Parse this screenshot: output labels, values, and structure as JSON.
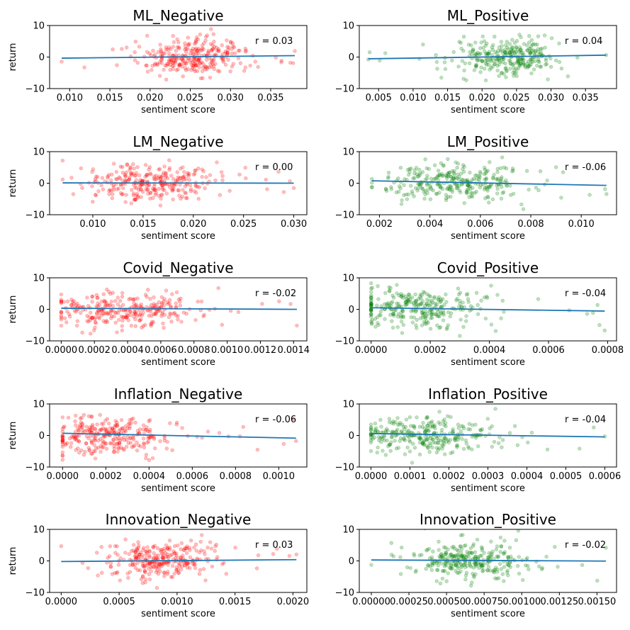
{
  "figure": {
    "background": "#ffffff"
  },
  "style": {
    "negative_color": "#ff0000",
    "positive_color": "#008000",
    "regression_color": "#1f77b4",
    "point_alpha": 0.25
  },
  "chart_data": [
    {
      "type": "scatter",
      "title": "ML_Negative",
      "xlabel": "sentiment score",
      "ylabel": "return",
      "xlim": [
        0.0075,
        0.0395
      ],
      "ylim": [
        -10,
        10
      ],
      "xticks": [
        0.01,
        0.015,
        0.02,
        0.025,
        0.03,
        0.035
      ],
      "xtick_labels": [
        "0.010",
        "0.015",
        "0.020",
        "0.025",
        "0.030",
        "0.035"
      ],
      "yticks": [
        -10,
        0,
        10
      ],
      "ytick_labels": [
        "−10",
        "0",
        "10"
      ],
      "r_label": "r = 0.03",
      "color": "red",
      "x_range": [
        0.009,
        0.038
      ],
      "x_center": 0.0255,
      "x_spread": 0.0032,
      "y_spread": 2.9,
      "fit": {
        "x": [
          0.009,
          0.038
        ],
        "y": [
          -0.35,
          0.45
        ]
      },
      "n_points": 300,
      "seed": 11
    },
    {
      "type": "scatter",
      "title": "ML_Positive",
      "xlabel": "sentiment score",
      "ylabel": "",
      "xlim": [
        0.0022,
        0.0395
      ],
      "ylim": [
        -10,
        10
      ],
      "xticks": [
        0.005,
        0.01,
        0.015,
        0.02,
        0.025,
        0.03,
        0.035
      ],
      "xtick_labels": [
        "0.005",
        "0.010",
        "0.015",
        "0.020",
        "0.025",
        "0.030",
        "0.035"
      ],
      "yticks": [
        -10,
        0,
        10
      ],
      "ytick_labels": [
        "−10",
        "0",
        "10"
      ],
      "r_label": "r = 0.04",
      "color": "green",
      "x_range": [
        0.0035,
        0.038
      ],
      "x_center": 0.0235,
      "x_spread": 0.0035,
      "y_spread": 2.9,
      "fit": {
        "x": [
          0.0035,
          0.038
        ],
        "y": [
          -0.55,
          0.6
        ]
      },
      "n_points": 300,
      "seed": 23
    },
    {
      "type": "scatter",
      "title": "LM_Negative",
      "xlabel": "sentiment score",
      "ylabel": "return",
      "xlim": [
        0.0057,
        0.0313
      ],
      "ylim": [
        -10,
        10
      ],
      "xticks": [
        0.01,
        0.015,
        0.02,
        0.025,
        0.03
      ],
      "xtick_labels": [
        "0.010",
        "0.015",
        "0.020",
        "0.025",
        "0.030"
      ],
      "yticks": [
        -10,
        0,
        10
      ],
      "ytick_labels": [
        "−10",
        "0",
        "10"
      ],
      "r_label": "r = 0.00",
      "color": "red",
      "x_range": [
        0.007,
        0.03
      ],
      "x_center": 0.0155,
      "x_spread": 0.0032,
      "y_spread": 2.9,
      "fit": {
        "x": [
          0.007,
          0.03
        ],
        "y": [
          0.1,
          0.0
        ]
      },
      "n_points": 300,
      "seed": 37
    },
    {
      "type": "scatter",
      "title": "LM_Positive",
      "xlabel": "sentiment score",
      "ylabel": "",
      "xlim": [
        0.0012,
        0.0114
      ],
      "ylim": [
        -10,
        10
      ],
      "xticks": [
        0.002,
        0.004,
        0.006,
        0.008,
        0.01
      ],
      "xtick_labels": [
        "0.002",
        "0.004",
        "0.006",
        "0.008",
        "0.010"
      ],
      "yticks": [
        -10,
        0,
        10
      ],
      "ytick_labels": [
        "−10",
        "0",
        "10"
      ],
      "r_label": "r = -0.06",
      "color": "green",
      "x_range": [
        0.0017,
        0.011
      ],
      "x_center": 0.0048,
      "x_spread": 0.0014,
      "y_spread": 2.9,
      "fit": {
        "x": [
          0.0017,
          0.011
        ],
        "y": [
          0.75,
          -0.7
        ]
      },
      "n_points": 300,
      "seed": 41
    },
    {
      "type": "scatter",
      "title": "Covid_Negative",
      "xlabel": "sentiment score",
      "ylabel": "return",
      "xlim": [
        -7e-05,
        0.00148
      ],
      "ylim": [
        -10,
        10
      ],
      "xticks": [
        0.0,
        0.0002,
        0.0004,
        0.0006,
        0.0008,
        0.001,
        0.0012,
        0.0014
      ],
      "xtick_labels": [
        "0.0000",
        "0.0002",
        "0.0004",
        "0.0006",
        "0.0008",
        "0.0010",
        "0.0012",
        "0.0014"
      ],
      "yticks": [
        -10,
        0,
        10
      ],
      "ytick_labels": [
        "−10",
        "0",
        "10"
      ],
      "r_label": "r = -0.02",
      "color": "red",
      "x_range": [
        0.0,
        0.00142
      ],
      "x_center": 0.00035,
      "x_spread": 0.00025,
      "y_spread": 2.9,
      "fit": {
        "x": [
          0.0,
          0.00142
        ],
        "y": [
          0.35,
          0.0
        ]
      },
      "n_points": 300,
      "seed": 53
    },
    {
      "type": "scatter",
      "title": "Covid_Positive",
      "xlabel": "sentiment score",
      "ylabel": "",
      "xlim": [
        -4e-05,
        0.00083
      ],
      "ylim": [
        -10,
        10
      ],
      "xticks": [
        0.0,
        0.0002,
        0.0004,
        0.0006,
        0.0008
      ],
      "xtick_labels": [
        "0.0000",
        "0.0002",
        "0.0004",
        "0.0006",
        "0.0008"
      ],
      "yticks": [
        -10,
        0,
        10
      ],
      "ytick_labels": [
        "−10",
        "0",
        "10"
      ],
      "r_label": "r = -0.04",
      "color": "green",
      "x_range": [
        0.0,
        0.00079
      ],
      "x_center": 0.00015,
      "x_spread": 0.00011,
      "y_spread": 2.9,
      "fit": {
        "x": [
          0.0,
          0.00079
        ],
        "y": [
          0.5,
          -0.55
        ]
      },
      "n_points": 300,
      "seed": 67
    },
    {
      "type": "scatter",
      "title": "Inflation_Negative",
      "xlabel": "sentiment score",
      "ylabel": "return",
      "xlim": [
        -6e-05,
        0.00113
      ],
      "ylim": [
        -10,
        10
      ],
      "xticks": [
        0.0,
        0.0002,
        0.0004,
        0.0006,
        0.0008,
        0.001
      ],
      "xtick_labels": [
        "0.0000",
        "0.0002",
        "0.0004",
        "0.0006",
        "0.0008",
        "0.0010"
      ],
      "yticks": [
        -10,
        0,
        10
      ],
      "ytick_labels": [
        "−10",
        "0",
        "10"
      ],
      "r_label": "r = -0.06",
      "color": "red",
      "x_range": [
        0.0,
        0.00108
      ],
      "x_center": 0.0002,
      "x_spread": 0.00015,
      "y_spread": 2.9,
      "fit": {
        "x": [
          0.0,
          0.00108
        ],
        "y": [
          0.7,
          -0.85
        ]
      },
      "n_points": 300,
      "seed": 71
    },
    {
      "type": "scatter",
      "title": "Inflation_Positive",
      "xlabel": "sentiment score",
      "ylabel": "",
      "xlim": [
        -3e-05,
        0.00063
      ],
      "ylim": [
        -10,
        10
      ],
      "xticks": [
        0.0,
        0.0001,
        0.0002,
        0.0003,
        0.0004,
        0.0005,
        0.0006
      ],
      "xtick_labels": [
        "0.0000",
        "0.0001",
        "0.0002",
        "0.0003",
        "0.0004",
        "0.0005",
        "0.0006"
      ],
      "yticks": [
        -10,
        0,
        10
      ],
      "ytick_labels": [
        "−10",
        "0",
        "10"
      ],
      "r_label": "r = -0.04",
      "color": "green",
      "x_range": [
        0.0,
        0.0006
      ],
      "x_center": 0.00013,
      "x_spread": 9e-05,
      "y_spread": 2.9,
      "fit": {
        "x": [
          0.0,
          0.0006
        ],
        "y": [
          0.6,
          -0.45
        ]
      },
      "n_points": 300,
      "seed": 83
    },
    {
      "type": "scatter",
      "title": "Innovation_Negative",
      "xlabel": "sentiment score",
      "ylabel": "return",
      "xlim": [
        -0.0001,
        0.00212
      ],
      "ylim": [
        -10,
        10
      ],
      "xticks": [
        0.0,
        0.0005,
        0.001,
        0.0015,
        0.002
      ],
      "xtick_labels": [
        "0.0000",
        "0.0005",
        "0.0010",
        "0.0015",
        "0.0020"
      ],
      "yticks": [
        -10,
        0,
        10
      ],
      "ytick_labels": [
        "−10",
        "0",
        "10"
      ],
      "r_label": "r = 0.03",
      "color": "red",
      "x_range": [
        0.0,
        0.00203
      ],
      "x_center": 0.00085,
      "x_spread": 0.00024,
      "y_spread": 2.9,
      "fit": {
        "x": [
          0.0,
          0.00203
        ],
        "y": [
          -0.2,
          0.4
        ]
      },
      "n_points": 300,
      "seed": 97
    },
    {
      "type": "scatter",
      "title": "Innovation_Positive",
      "xlabel": "sentiment score",
      "ylabel": "",
      "xlim": [
        -8e-05,
        0.00163
      ],
      "ylim": [
        -10,
        10
      ],
      "xticks": [
        0.0,
        0.00025,
        0.0005,
        0.00075,
        0.001,
        0.00125,
        0.0015
      ],
      "xtick_labels": [
        "0.00000",
        "0.00025",
        "0.00050",
        "0.00075",
        "0.00100",
        "0.00125",
        "0.00150"
      ],
      "yticks": [
        -10,
        0,
        10
      ],
      "ytick_labels": [
        "−10",
        "0",
        "10"
      ],
      "r_label": "r = -0.02",
      "color": "green",
      "x_range": [
        0.0,
        0.00156
      ],
      "x_center": 0.00065,
      "x_spread": 0.0002,
      "y_spread": 2.9,
      "fit": {
        "x": [
          0.0,
          0.00156
        ],
        "y": [
          0.3,
          -0.05
        ]
      },
      "n_points": 300,
      "seed": 101
    }
  ]
}
